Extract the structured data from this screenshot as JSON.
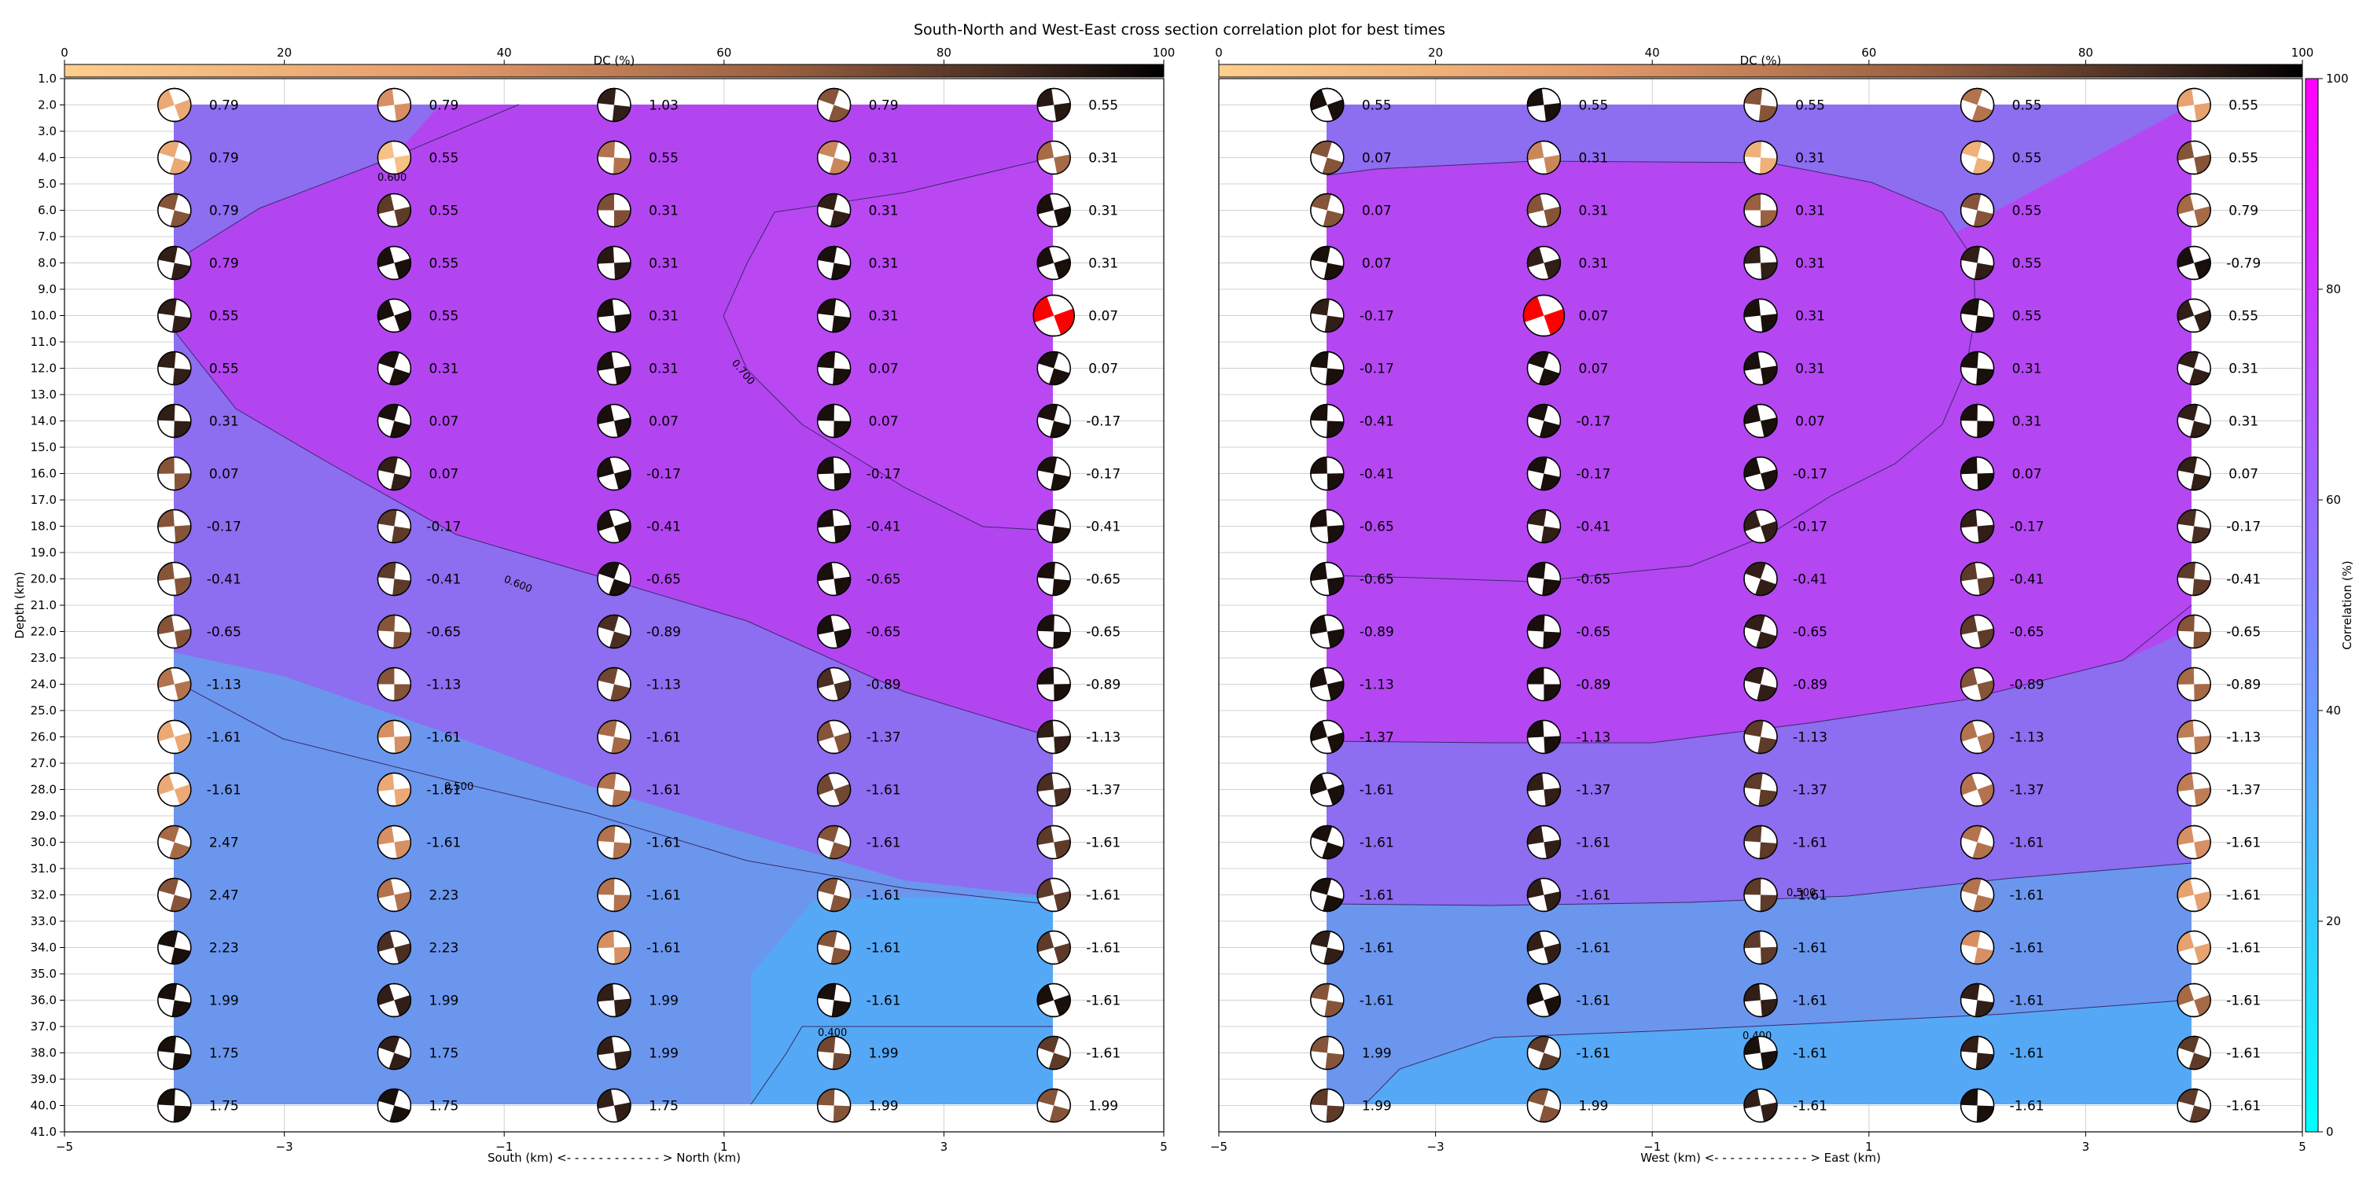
{
  "figure_title": "South-North and West-East cross section correlation plot for best times",
  "chart_data": [
    {
      "type": "heatmap",
      "panel": "south-north",
      "xlabel": "South (km) <- - - - - - - - - - - - > North (km)",
      "ylabel": "Depth (km)",
      "xlim": [
        -5,
        5
      ],
      "ylim": [
        41,
        1
      ],
      "x_ticks": [
        "−5",
        "−3",
        "−1",
        "1",
        "3",
        "5"
      ],
      "y_ticks": [
        "1.0",
        "2.0",
        "3.0",
        "4.0",
        "5.0",
        "6.0",
        "7.0",
        "8.0",
        "9.0",
        "10.0",
        "11.0",
        "12.0",
        "13.0",
        "14.0",
        "15.0",
        "16.0",
        "17.0",
        "18.0",
        "19.0",
        "20.0",
        "21.0",
        "22.0",
        "23.0",
        "24.0",
        "25.0",
        "26.0",
        "27.0",
        "28.0",
        "29.0",
        "30.0",
        "31.0",
        "32.0",
        "33.0",
        "34.0",
        "35.0",
        "36.0",
        "37.0",
        "38.0",
        "39.0",
        "40.0",
        "41.0"
      ],
      "dc_colorbar": {
        "label": "DC (%)",
        "ticks": [
          "0",
          "20",
          "40",
          "60",
          "80",
          "100"
        ]
      },
      "columns_x": [
        -4,
        -2,
        0,
        2,
        4
      ],
      "depths": [
        2,
        4,
        6,
        8,
        10,
        12,
        14,
        16,
        18,
        20,
        22,
        24,
        26,
        28,
        30,
        32,
        34,
        36,
        38,
        40
      ],
      "magnitude_labels": [
        [
          "0.79",
          "0.79",
          "1.03",
          "0.79",
          "0.55"
        ],
        [
          "0.79",
          "0.55",
          "0.55",
          "0.31",
          "0.31"
        ],
        [
          "0.79",
          "0.55",
          "0.31",
          "0.31",
          "0.31"
        ],
        [
          "0.79",
          "0.55",
          "0.31",
          "0.31",
          "0.31"
        ],
        [
          "0.55",
          "0.55",
          "0.31",
          "0.31",
          "0.07"
        ],
        [
          "0.55",
          "0.31",
          "0.31",
          "0.07",
          "0.07"
        ],
        [
          "0.31",
          "0.07",
          "0.07",
          "0.07",
          "-0.17"
        ],
        [
          "0.07",
          "0.07",
          "-0.17",
          "-0.17",
          "-0.17"
        ],
        [
          "-0.17",
          "-0.17",
          "-0.41",
          "-0.41",
          "-0.41"
        ],
        [
          "-0.41",
          "-0.41",
          "-0.65",
          "-0.65",
          "-0.65"
        ],
        [
          "-0.65",
          "-0.65",
          "-0.89",
          "-0.65",
          "-0.65"
        ],
        [
          "-1.13",
          "-1.13",
          "-1.13",
          "-0.89",
          "-0.89"
        ],
        [
          "-1.61",
          "-1.61",
          "-1.61",
          "-1.37",
          "-1.13"
        ],
        [
          "-1.61",
          "-1.61",
          "-1.61",
          "-1.61",
          "-1.37"
        ],
        [
          "2.47",
          "-1.61",
          "-1.61",
          "-1.61",
          "-1.61"
        ],
        [
          "2.47",
          "2.23",
          "-1.61",
          "-1.61",
          "-1.61"
        ],
        [
          "2.23",
          "2.23",
          "-1.61",
          "-1.61",
          "-1.61"
        ],
        [
          "1.99",
          "1.99",
          "1.99",
          "-1.61",
          "-1.61"
        ],
        [
          "1.75",
          "1.75",
          "1.99",
          "1.99",
          "-1.61"
        ],
        [
          "1.75",
          "1.75",
          "1.75",
          "1.99",
          "1.99"
        ]
      ],
      "dc_percent": [
        [
          25,
          40,
          90,
          70,
          92
        ],
        [
          25,
          10,
          55,
          45,
          60
        ],
        [
          70,
          80,
          72,
          90,
          95
        ],
        [
          90,
          95,
          92,
          95,
          95
        ],
        [
          90,
          95,
          95,
          95,
          95
        ],
        [
          90,
          95,
          95,
          95,
          95
        ],
        [
          90,
          95,
          95,
          95,
          95
        ],
        [
          70,
          90,
          95,
          95,
          95
        ],
        [
          70,
          80,
          95,
          95,
          95
        ],
        [
          70,
          80,
          95,
          95,
          95
        ],
        [
          70,
          70,
          85,
          95,
          95
        ],
        [
          55,
          70,
          75,
          85,
          95
        ],
        [
          25,
          40,
          60,
          70,
          90
        ],
        [
          25,
          25,
          55,
          75,
          85
        ],
        [
          60,
          40,
          55,
          70,
          80
        ],
        [
          70,
          55,
          55,
          70,
          80
        ],
        [
          95,
          85,
          40,
          70,
          80
        ],
        [
          95,
          90,
          90,
          95,
          95
        ],
        [
          95,
          90,
          90,
          75,
          80
        ],
        [
          95,
          95,
          90,
          70,
          70
        ]
      ],
      "best_solution": [
        4,
        4
      ],
      "best_color": "#ff0000",
      "correlation_regions": [
        {
          "range": "0.60–0.70",
          "color": "#8d6df0"
        },
        {
          "range": "0.70–0.80",
          "color": "#b947f2"
        },
        {
          "range": "0.50–0.60",
          "color": "#6b96ee"
        },
        {
          "range": "0.40–0.50",
          "color": "#55a8f5"
        }
      ],
      "contour_labels": [
        "0.600",
        "0.700",
        "0.600",
        "0.500",
        "0.400"
      ]
    },
    {
      "type": "heatmap",
      "panel": "west-east",
      "xlabel": "West (km) <- - - - - - - - - - - - > East (km)",
      "xlim": [
        -5,
        5
      ],
      "ylim": [
        41,
        1
      ],
      "x_ticks": [
        "−5",
        "−3",
        "−1",
        "1",
        "3",
        "5"
      ],
      "dc_colorbar": {
        "label": "DC (%)",
        "ticks": [
          "0",
          "20",
          "40",
          "60",
          "80",
          "100"
        ]
      },
      "correlation_colorbar": {
        "label": "Correlation (%)",
        "ticks": [
          "0",
          "20",
          "40",
          "60",
          "80",
          "100"
        ],
        "colors": [
          "#00ffff",
          "#ff00ff"
        ]
      },
      "columns_x": [
        -4,
        -2,
        0,
        2,
        4
      ],
      "depths": [
        2,
        4,
        6,
        8,
        10,
        12,
        14,
        16,
        18,
        20,
        22,
        24,
        26,
        28,
        30,
        32,
        34,
        36,
        38,
        40
      ],
      "magnitude_labels": [
        [
          "0.55",
          "0.55",
          "0.55",
          "0.55",
          "0.55"
        ],
        [
          "0.07",
          "0.31",
          "0.31",
          "0.55",
          "0.55"
        ],
        [
          "0.07",
          "0.31",
          "0.31",
          "0.55",
          "0.79"
        ],
        [
          "0.07",
          "0.31",
          "0.31",
          "0.55",
          "-0.79"
        ],
        [
          "-0.17",
          "0.07",
          "0.31",
          "0.55",
          "0.55"
        ],
        [
          "-0.17",
          "0.07",
          "0.31",
          "0.31",
          "0.31"
        ],
        [
          "-0.41",
          "-0.17",
          "0.07",
          "0.31",
          "0.31"
        ],
        [
          "-0.41",
          "-0.17",
          "-0.17",
          "0.07",
          "0.07"
        ],
        [
          "-0.65",
          "-0.41",
          "-0.17",
          "-0.17",
          "-0.17"
        ],
        [
          "-0.65",
          "-0.65",
          "-0.41",
          "-0.41",
          "-0.41"
        ],
        [
          "-0.89",
          "-0.65",
          "-0.65",
          "-0.65",
          "-0.65"
        ],
        [
          "-1.13",
          "-0.89",
          "-0.89",
          "-0.89",
          "-0.89"
        ],
        [
          "-1.37",
          "-1.13",
          "-1.13",
          "-1.13",
          "-1.13"
        ],
        [
          "-1.61",
          "-1.37",
          "-1.37",
          "-1.37",
          "-1.37"
        ],
        [
          "-1.61",
          "-1.61",
          "-1.61",
          "-1.61",
          "-1.61"
        ],
        [
          "-1.61",
          "-1.61",
          "-1.61",
          "-1.61",
          "-1.61"
        ],
        [
          "-1.61",
          "-1.61",
          "-1.61",
          "-1.61",
          "-1.61"
        ],
        [
          "-1.61",
          "-1.61",
          "-1.61",
          "-1.61",
          "-1.61"
        ],
        [
          "1.99",
          "-1.61",
          "-1.61",
          "-1.61",
          "-1.61"
        ],
        [
          "1.99",
          "1.99",
          "-1.61",
          "-1.61",
          "-1.61"
        ]
      ],
      "dc_percent": [
        [
          95,
          95,
          70,
          55,
          30
        ],
        [
          70,
          45,
          20,
          20,
          70
        ],
        [
          70,
          70,
          65,
          70,
          60
        ],
        [
          95,
          90,
          90,
          90,
          95
        ],
        [
          90,
          95,
          95,
          95,
          90
        ],
        [
          95,
          95,
          95,
          95,
          90
        ],
        [
          95,
          95,
          95,
          95,
          90
        ],
        [
          95,
          95,
          95,
          95,
          90
        ],
        [
          95,
          90,
          90,
          90,
          85
        ],
        [
          95,
          95,
          90,
          80,
          80
        ],
        [
          95,
          95,
          90,
          80,
          70
        ],
        [
          95,
          95,
          90,
          70,
          60
        ],
        [
          95,
          95,
          80,
          55,
          50
        ],
        [
          95,
          90,
          80,
          55,
          50
        ],
        [
          95,
          90,
          80,
          55,
          40
        ],
        [
          95,
          90,
          80,
          55,
          30
        ],
        [
          90,
          90,
          80,
          40,
          30
        ],
        [
          70,
          95,
          90,
          90,
          60
        ],
        [
          70,
          80,
          95,
          90,
          80
        ],
        [
          80,
          70,
          90,
          95,
          80
        ]
      ],
      "best_solution": [
        4,
        1
      ],
      "best_color": "#ff0000",
      "correlation_regions": [
        {
          "range": "0.70–0.80",
          "color": "#b947f2"
        },
        {
          "range": "0.60–0.70",
          "color": "#8d6df0"
        },
        {
          "range": "0.50–0.60",
          "color": "#6b96ee"
        },
        {
          "range": "0.40–0.50",
          "color": "#55a8f5"
        }
      ],
      "contour_labels": [
        "0.500",
        "0.400"
      ]
    }
  ]
}
